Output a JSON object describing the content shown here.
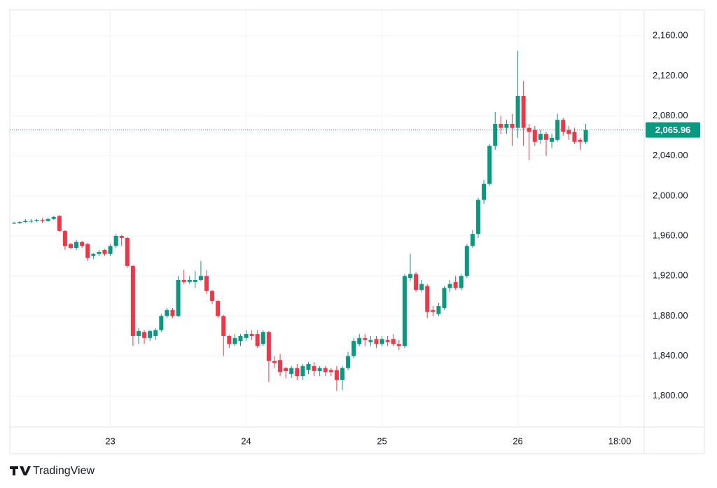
{
  "chart_data": {
    "type": "candlestick",
    "up_color": "#089981",
    "down_color": "#f23645",
    "grid": true,
    "xlim": [
      22.26,
      26.93
    ],
    "xticks": [
      23,
      24,
      25,
      26,
      {
        "value": 26.75,
        "label": "18:00"
      }
    ],
    "ylim": [
      1769,
      2186
    ],
    "yticks": [
      {
        "value": 1800,
        "label": "1,800.00"
      },
      {
        "value": 1840,
        "label": "1,840.00"
      },
      {
        "value": 1880,
        "label": "1,880.00"
      },
      {
        "value": 1920,
        "label": "1,920.00"
      },
      {
        "value": 1960,
        "label": "1,960.00"
      },
      {
        "value": 2000,
        "label": "2,000.00"
      },
      {
        "value": 2040,
        "label": "2,040.00"
      },
      {
        "value": 2080,
        "label": "2,080.00"
      },
      {
        "value": 2120,
        "label": "2,120.00"
      },
      {
        "value": 2160,
        "label": "2,160.00"
      }
    ],
    "last_price": {
      "value": 2065.96,
      "label": "2,065.96"
    },
    "x": [
      22.2917,
      22.3333,
      22.375,
      22.4167,
      22.4583,
      22.5,
      22.5417,
      22.5833,
      22.625,
      22.6667,
      22.7083,
      22.75,
      22.7917,
      22.8333,
      22.875,
      22.9167,
      22.9583,
      23,
      23.0417,
      23.0833,
      23.125,
      23.1667,
      23.2083,
      23.25,
      23.2917,
      23.3333,
      23.375,
      23.4167,
      23.4583,
      23.5,
      23.5417,
      23.5833,
      23.625,
      23.6667,
      23.7083,
      23.75,
      23.7917,
      23.8333,
      23.875,
      23.9167,
      23.9583,
      24,
      24.0417,
      24.0833,
      24.125,
      24.1667,
      24.2083,
      24.25,
      24.2917,
      24.3333,
      24.375,
      24.4167,
      24.4583,
      24.5,
      24.5417,
      24.5833,
      24.625,
      24.6667,
      24.7083,
      24.75,
      24.7917,
      24.8333,
      24.875,
      24.9167,
      24.9583,
      25,
      25.0417,
      25.0833,
      25.125,
      25.1667,
      25.2083,
      25.25,
      25.2917,
      25.3333,
      25.375,
      25.4167,
      25.4583,
      25.5,
      25.5417,
      25.5833,
      25.625,
      25.6667,
      25.7083,
      25.75,
      25.7917,
      25.8333,
      25.875,
      25.9167,
      25.9583,
      26,
      26.0417,
      26.0833,
      26.125,
      26.1667,
      26.2083,
      26.25,
      26.2917,
      26.3333,
      26.375,
      26.4167,
      26.4583,
      26.5
    ],
    "open": [
      1973,
      1973,
      1974,
      1975,
      1975,
      1976,
      1975,
      1977,
      1980,
      1965,
      1952,
      1948,
      1954,
      1952,
      1940,
      1942,
      1946,
      1942,
      1950,
      1960,
      1958,
      1930,
      1860,
      1864,
      1858,
      1860,
      1866,
      1880,
      1886,
      1880,
      1916,
      1914,
      1914,
      1916,
      1920,
      1905,
      1895,
      1880,
      1860,
      1852,
      1855,
      1858,
      1862,
      1862,
      1852,
      1864,
      1835,
      1836,
      1828,
      1822,
      1828,
      1820,
      1826,
      1830,
      1825,
      1828,
      1826,
      1826,
      1816,
      1828,
      1840,
      1852,
      1858,
      1854,
      1857,
      1852,
      1856,
      1857,
      1852,
      1850,
      1918,
      1922,
      1906,
      1910,
      1886,
      1882,
      1888,
      1908,
      1914,
      1908,
      1920,
      1950,
      1962,
      1996,
      2012,
      2050,
      2072,
      2068,
      2072,
      2068,
      2100,
      2068,
      2066,
      2056,
      2062,
      2054,
      2056,
      2076,
      2066,
      2064,
      2056,
      2054
    ],
    "high": [
      1974,
      1975,
      1977,
      1977,
      1977,
      1978,
      1978,
      1980,
      1981,
      1966,
      1953,
      1956,
      1955,
      1953,
      1943,
      1946,
      1947,
      1952,
      1962,
      1961,
      1959,
      1931,
      1868,
      1866,
      1866,
      1868,
      1882,
      1888,
      1888,
      1920,
      1926,
      1920,
      1925,
      1935,
      1926,
      1906,
      1896,
      1881,
      1861,
      1862,
      1862,
      1866,
      1866,
      1866,
      1866,
      1865,
      1840,
      1842,
      1829,
      1830,
      1832,
      1832,
      1834,
      1834,
      1830,
      1830,
      1828,
      1830,
      1830,
      1844,
      1858,
      1862,
      1862,
      1860,
      1860,
      1860,
      1860,
      1862,
      1856,
      1922,
      1942,
      1924,
      1916,
      1912,
      1890,
      1893,
      1910,
      1916,
      1920,
      1922,
      1952,
      1966,
      1998,
      2016,
      2052,
      2084,
      2080,
      2076,
      2082,
      2145,
      2115,
      2072,
      2070,
      2066,
      2064,
      2062,
      2082,
      2078,
      2070,
      2068,
      2058,
      2072
    ],
    "low": [
      1972,
      1972,
      1973,
      1973,
      1974,
      1973,
      1974,
      1976,
      1964,
      1946,
      1947,
      1946,
      1948,
      1935,
      1937,
      1940,
      1940,
      1940,
      1948,
      1950,
      1928,
      1850,
      1852,
      1852,
      1855,
      1856,
      1864,
      1878,
      1878,
      1879,
      1912,
      1912,
      1908,
      1915,
      1902,
      1892,
      1878,
      1840,
      1848,
      1850,
      1850,
      1855,
      1856,
      1848,
      1850,
      1814,
      1828,
      1820,
      1818,
      1818,
      1816,
      1816,
      1822,
      1820,
      1820,
      1820,
      1820,
      1805,
      1806,
      1826,
      1838,
      1850,
      1850,
      1850,
      1848,
      1850,
      1850,
      1850,
      1846,
      1848,
      1915,
      1904,
      1904,
      1878,
      1880,
      1880,
      1886,
      1904,
      1906,
      1906,
      1918,
      1948,
      1958,
      1992,
      2010,
      2046,
      2062,
      2062,
      2050,
      2058,
      2050,
      2036,
      2050,
      2052,
      2040,
      2048,
      2054,
      2060,
      2056,
      2052,
      2046,
      2052
    ],
    "close": [
      1973,
      1974,
      1975,
      1975,
      1976,
      1975,
      1977,
      1979,
      1965,
      1950,
      1948,
      1954,
      1950,
      1938,
      1942,
      1944,
      1942,
      1950,
      1960,
      1958,
      1930,
      1860,
      1865,
      1858,
      1865,
      1866,
      1880,
      1886,
      1880,
      1916,
      1914,
      1916,
      1916,
      1920,
      1905,
      1895,
      1880,
      1860,
      1852,
      1858,
      1860,
      1862,
      1860,
      1850,
      1864,
      1835,
      1833,
      1824,
      1825,
      1828,
      1820,
      1830,
      1832,
      1825,
      1828,
      1824,
      1824,
      1816,
      1828,
      1840,
      1855,
      1858,
      1856,
      1856,
      1852,
      1857,
      1854,
      1852,
      1850,
      1920,
      1922,
      1906,
      1912,
      1884,
      1884,
      1890,
      1908,
      1912,
      1908,
      1920,
      1950,
      1962,
      1996,
      2012,
      2050,
      2072,
      2068,
      2072,
      2068,
      2100,
      2068,
      2064,
      2054,
      2062,
      2056,
      2058,
      2076,
      2064,
      2062,
      2054,
      2054,
      2065.96
    ]
  },
  "logo_text": "TradingView"
}
